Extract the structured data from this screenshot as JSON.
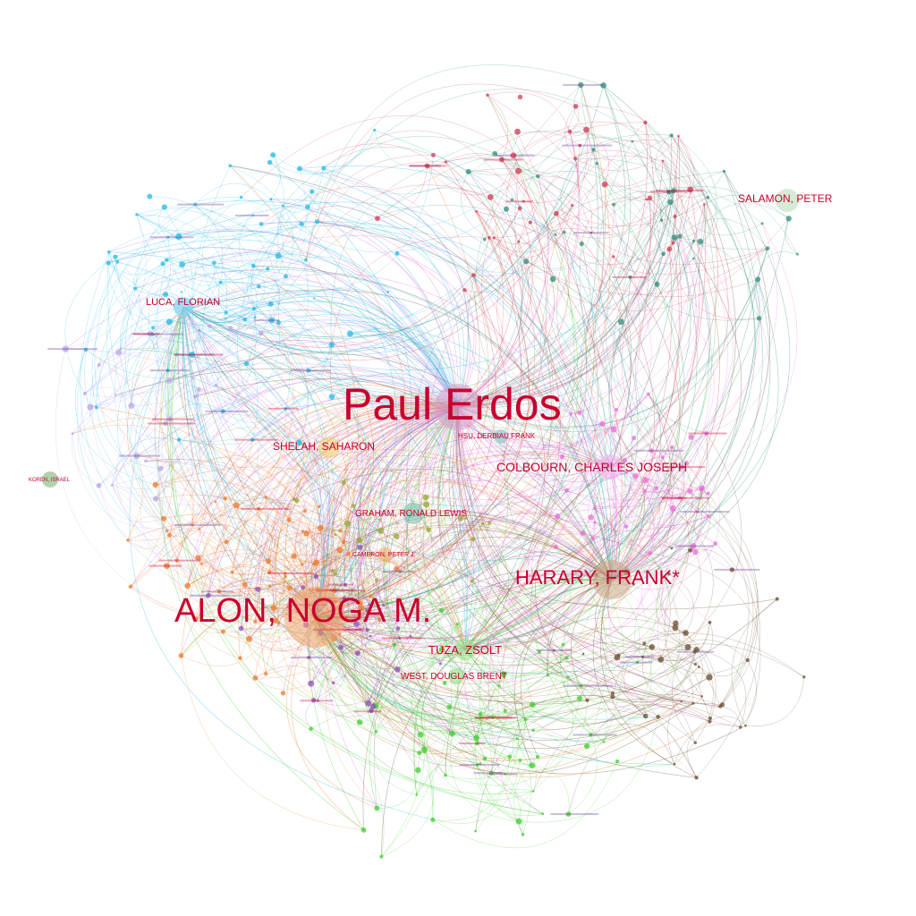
{
  "title": "",
  "colors": {
    "label": "#c8002e",
    "communities": {
      "cyan": "#21b9e6",
      "orange": "#ec7a2a",
      "green": "#3ccf2b",
      "brown": "#6b4a2c",
      "magenta": "#e86cd9",
      "purple": "#8e4fb8",
      "teal": "#2f8f7a",
      "red": "#d23a52",
      "olive": "#9aa531",
      "lilac": "#b9a6e8"
    }
  },
  "nodes": [
    {
      "id": "paul-erdos",
      "label": "Paul Erdos",
      "hub": true,
      "community": "magenta"
    },
    {
      "id": "alon",
      "label": "ALON, NOGA M.",
      "hub": true,
      "community": "orange"
    },
    {
      "id": "harary",
      "label": "HARARY, FRANK*",
      "hub": true,
      "community": "brown"
    },
    {
      "id": "colbourn",
      "label": "COLBOURN, CHARLES JOSEPH",
      "hub": false,
      "community": "magenta"
    },
    {
      "id": "shelah",
      "label": "SHELAH, SAHARON",
      "hub": false,
      "community": "orange"
    },
    {
      "id": "tuza",
      "label": "TUZA, ZSOLT",
      "hub": false,
      "community": "green"
    },
    {
      "id": "west",
      "label": "WEST, DOUGLAS BRENT",
      "hub": false,
      "community": "green"
    },
    {
      "id": "graham",
      "label": "GRAHAM, RONALD LEWIS",
      "hub": false,
      "community": "teal"
    },
    {
      "id": "salamon",
      "label": "SALAMON, PETER",
      "hub": false,
      "community": "green"
    },
    {
      "id": "luca",
      "label": "LUCA, FLORIAN",
      "hub": false,
      "community": "cyan"
    },
    {
      "id": "koren",
      "label": "KOREN, ISRAEL",
      "hub": false,
      "community": "olive"
    },
    {
      "id": "hsu",
      "label": "HSU, DERBIAU FRANK",
      "hub": false,
      "community": "teal"
    },
    {
      "id": "cameron",
      "label": "CAMERON, PETER J.",
      "hub": false,
      "community": "orange"
    }
  ]
}
